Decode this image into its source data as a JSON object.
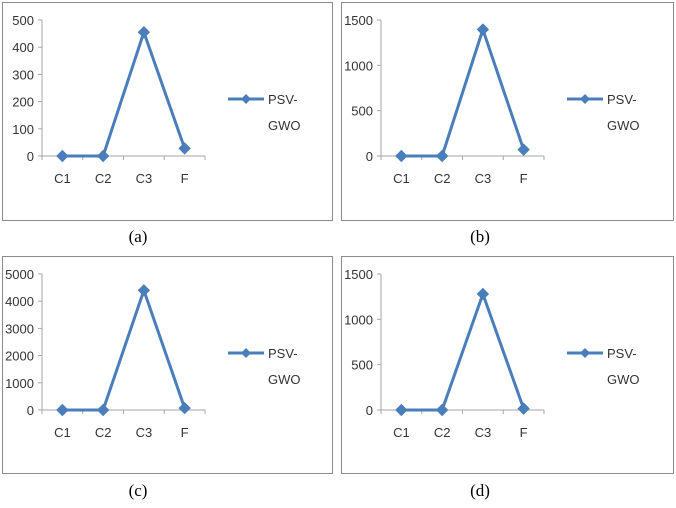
{
  "colors": {
    "series": "#4a7ebb",
    "border": "#8c8c8c",
    "axis": "#a6a6a6"
  },
  "chart_data": [
    {
      "type": "line",
      "caption": "(a)",
      "categories": [
        "C1",
        "C2",
        "C3",
        "F"
      ],
      "series": [
        {
          "name": "PSV-GWO",
          "values": [
            0,
            0,
            455,
            28
          ]
        }
      ],
      "ylim": [
        0,
        500
      ],
      "yticks": [
        "0",
        "100",
        "200",
        "300",
        "400",
        "500"
      ],
      "legend_lines": [
        "PSV-",
        "GWO"
      ],
      "legend": "right",
      "grid": false
    },
    {
      "type": "line",
      "caption": "(b)",
      "categories": [
        "C1",
        "C2",
        "C3",
        "F"
      ],
      "series": [
        {
          "name": "PSV-GWO",
          "values": [
            0,
            0,
            1395,
            70
          ]
        }
      ],
      "ylim": [
        0,
        1500
      ],
      "yticks": [
        "0",
        "500",
        "1000",
        "1500"
      ],
      "legend_lines": [
        "PSV-",
        "GWO"
      ],
      "legend": "right",
      "grid": false
    },
    {
      "type": "line",
      "caption": "(c)",
      "categories": [
        "C1",
        "C2",
        "C3",
        "F"
      ],
      "series": [
        {
          "name": "PSV-GWO",
          "values": [
            0,
            0,
            4400,
            70
          ]
        }
      ],
      "ylim": [
        0,
        5000
      ],
      "yticks": [
        "0",
        "1000",
        "2000",
        "3000",
        "4000",
        "5000"
      ],
      "legend_lines": [
        "PSV-",
        "GWO"
      ],
      "legend": "right",
      "grid": false
    },
    {
      "type": "line",
      "caption": "(d)",
      "categories": [
        "C1",
        "C2",
        "C3",
        "F"
      ],
      "series": [
        {
          "name": "PSV-GWO",
          "values": [
            0,
            0,
            1280,
            15
          ]
        }
      ],
      "ylim": [
        0,
        1500
      ],
      "yticks": [
        "0",
        "500",
        "1000",
        "1500"
      ],
      "legend_lines": [
        "PSV-",
        "GWO"
      ],
      "legend": "right",
      "grid": false
    }
  ]
}
